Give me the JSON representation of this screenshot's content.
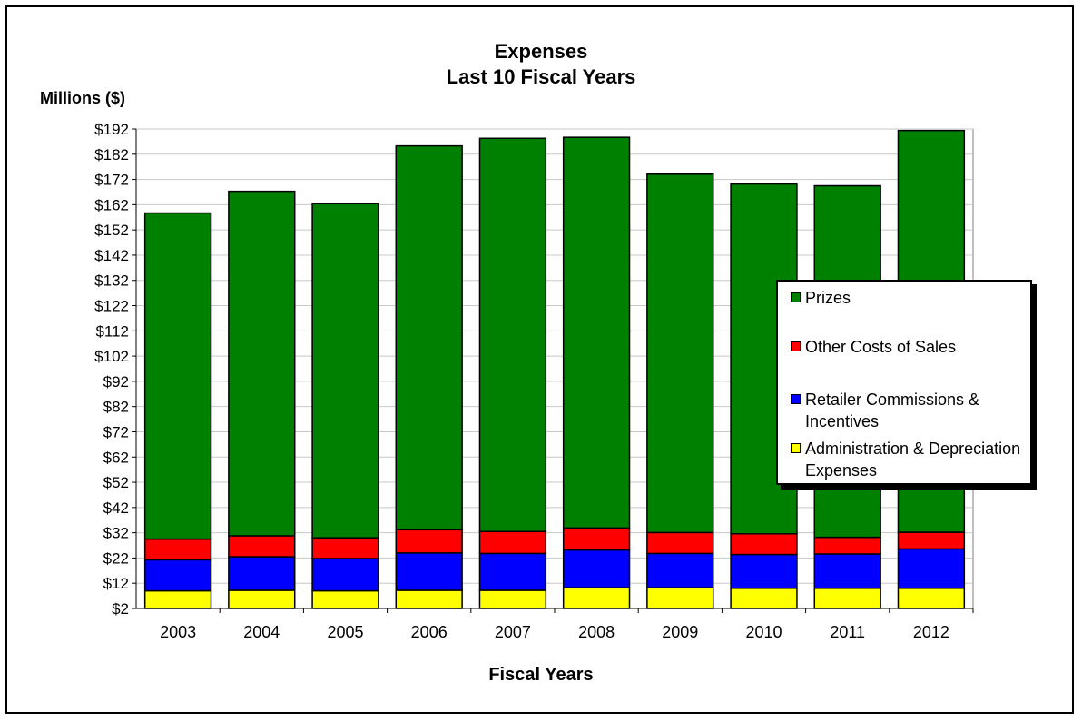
{
  "chart_data": {
    "type": "bar",
    "stacked": true,
    "title": "Expenses",
    "subtitle": "Last 10 Fiscal Years",
    "ylabel": "Millions ($)",
    "xlabel": "Fiscal Years",
    "ylim": [
      2,
      192
    ],
    "yticks": [
      "$2",
      "$12",
      "$22",
      "$32",
      "$42",
      "$52",
      "$62",
      "$72",
      "$82",
      "$92",
      "$102",
      "$112",
      "$122",
      "$132",
      "$142",
      "$152",
      "$162",
      "$172",
      "$182",
      "$192"
    ],
    "ytick_values": [
      2,
      12,
      22,
      32,
      42,
      52,
      62,
      72,
      82,
      92,
      102,
      112,
      122,
      132,
      142,
      152,
      162,
      172,
      182,
      192
    ],
    "categories": [
      "2003",
      "2004",
      "2005",
      "2006",
      "2007",
      "2008",
      "2009",
      "2010",
      "2011",
      "2012"
    ],
    "grid": true,
    "legend_position": "right",
    "series": [
      {
        "name": "Administration & Depreciation Expenses",
        "color": "#ffff00",
        "values": [
          7,
          7.2,
          7,
          7.2,
          7.2,
          8.2,
          8.2,
          8,
          8,
          8
        ]
      },
      {
        "name": "Retailer Commissions & Incentives",
        "color": "#0000ff",
        "values": [
          12.3,
          13.3,
          12.8,
          14.8,
          14.6,
          15,
          13.6,
          13.4,
          13.6,
          15.6
        ]
      },
      {
        "name": "Other Costs of Sales",
        "color": "#ff0000",
        "values": [
          8.2,
          8.3,
          8.2,
          9.2,
          8.7,
          8.7,
          8.3,
          8.2,
          6.6,
          6.6
        ]
      },
      {
        "name": "Prizes",
        "color": "#008000",
        "values": [
          129.2,
          136.5,
          132.4,
          152.1,
          155.8,
          154.8,
          142,
          138.6,
          139.3,
          159.2
        ]
      }
    ]
  },
  "legend_order": [
    3,
    2,
    1,
    0
  ]
}
